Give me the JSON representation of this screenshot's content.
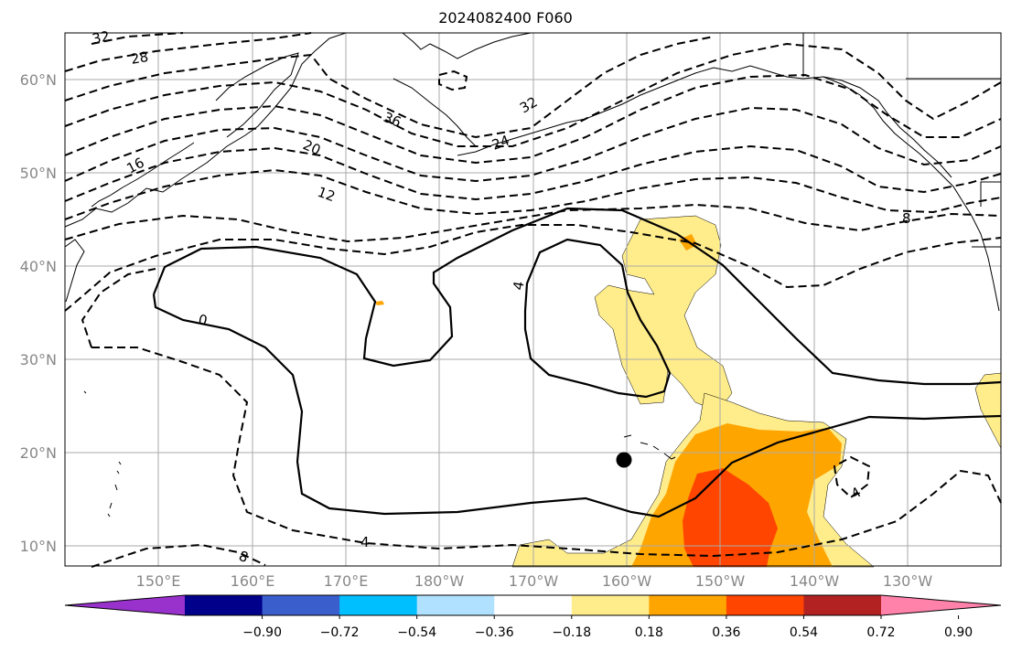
{
  "title": "2024082400 F060",
  "lat_labels": [
    "60°N",
    "50°N",
    "40°N",
    "30°N",
    "20°N",
    "10°N"
  ],
  "lon_labels": [
    "150°E",
    "160°E",
    "170°E",
    "180°W",
    "170°W",
    "160°W",
    "150°W",
    "140°W",
    "130°W"
  ],
  "contour_labels": [
    "32",
    "28",
    "36",
    "32",
    "24",
    "20",
    "16",
    "12",
    "8",
    "0",
    "4",
    "4",
    "4",
    "8"
  ],
  "colorbar": {
    "ticks": [
      "−0.90",
      "−0.72",
      "−0.54",
      "−0.36",
      "−0.18",
      "0.18",
      "0.36",
      "0.54",
      "0.72",
      "0.90"
    ],
    "colors": [
      "#9932cc",
      "#00008b",
      "#3a5fcd",
      "#00bfff",
      "#b0e2ff",
      "#ffffff",
      "#ffec8b",
      "#ffa500",
      "#ff4500",
      "#b22222",
      "#ff82ab"
    ]
  }
}
